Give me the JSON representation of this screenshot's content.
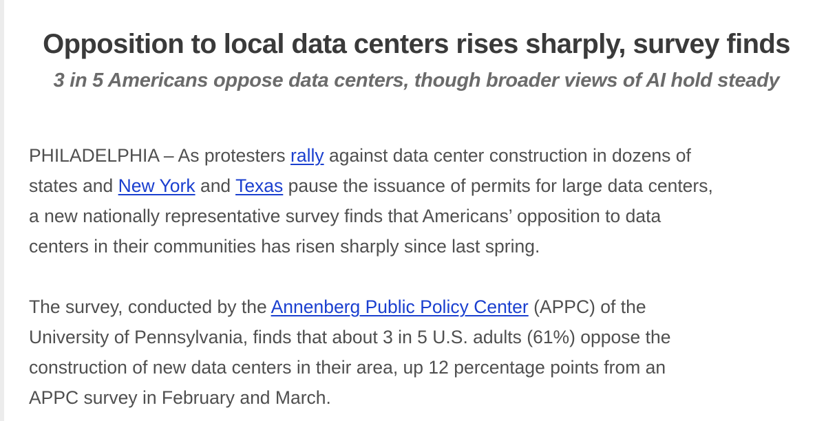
{
  "article": {
    "headline": "Opposition to local data centers rises sharply, survey finds",
    "subheadline": "3 in 5 Americans oppose data centers, though broader views of AI hold steady",
    "paragraph1": {
      "line1_before": "PHILADELPHIA – As protesters ",
      "link_rally": "rally",
      "line1_after": " against data center construction in dozens of",
      "line2_before": "states and ",
      "link_new_york": "New York",
      "line2_middle": " and ",
      "link_texas": "Texas",
      "line2_after": " pause the issuance of permits for large data centers,",
      "line3": "a new nationally representative survey finds that Americans’ opposition to data",
      "line4": "centers in their communities has risen sharply since last spring."
    },
    "paragraph2": {
      "line1_before": "The survey, conducted by the ",
      "link_appc": "Annenberg Public Policy Center",
      "line1_after": " (APPC) of the",
      "line2": "University of Pennsylvania, finds that about 3 in 5 U.S. adults (61%) oppose the",
      "line3": "construction of new data centers in their area, up 12 percentage points from an",
      "line4": "APPC survey in February and March."
    }
  },
  "colors": {
    "link": "#1a3fcf",
    "headline": "#3a3a3a",
    "subheadline": "#6b6b6b",
    "body_text": "#4f4f4f"
  }
}
